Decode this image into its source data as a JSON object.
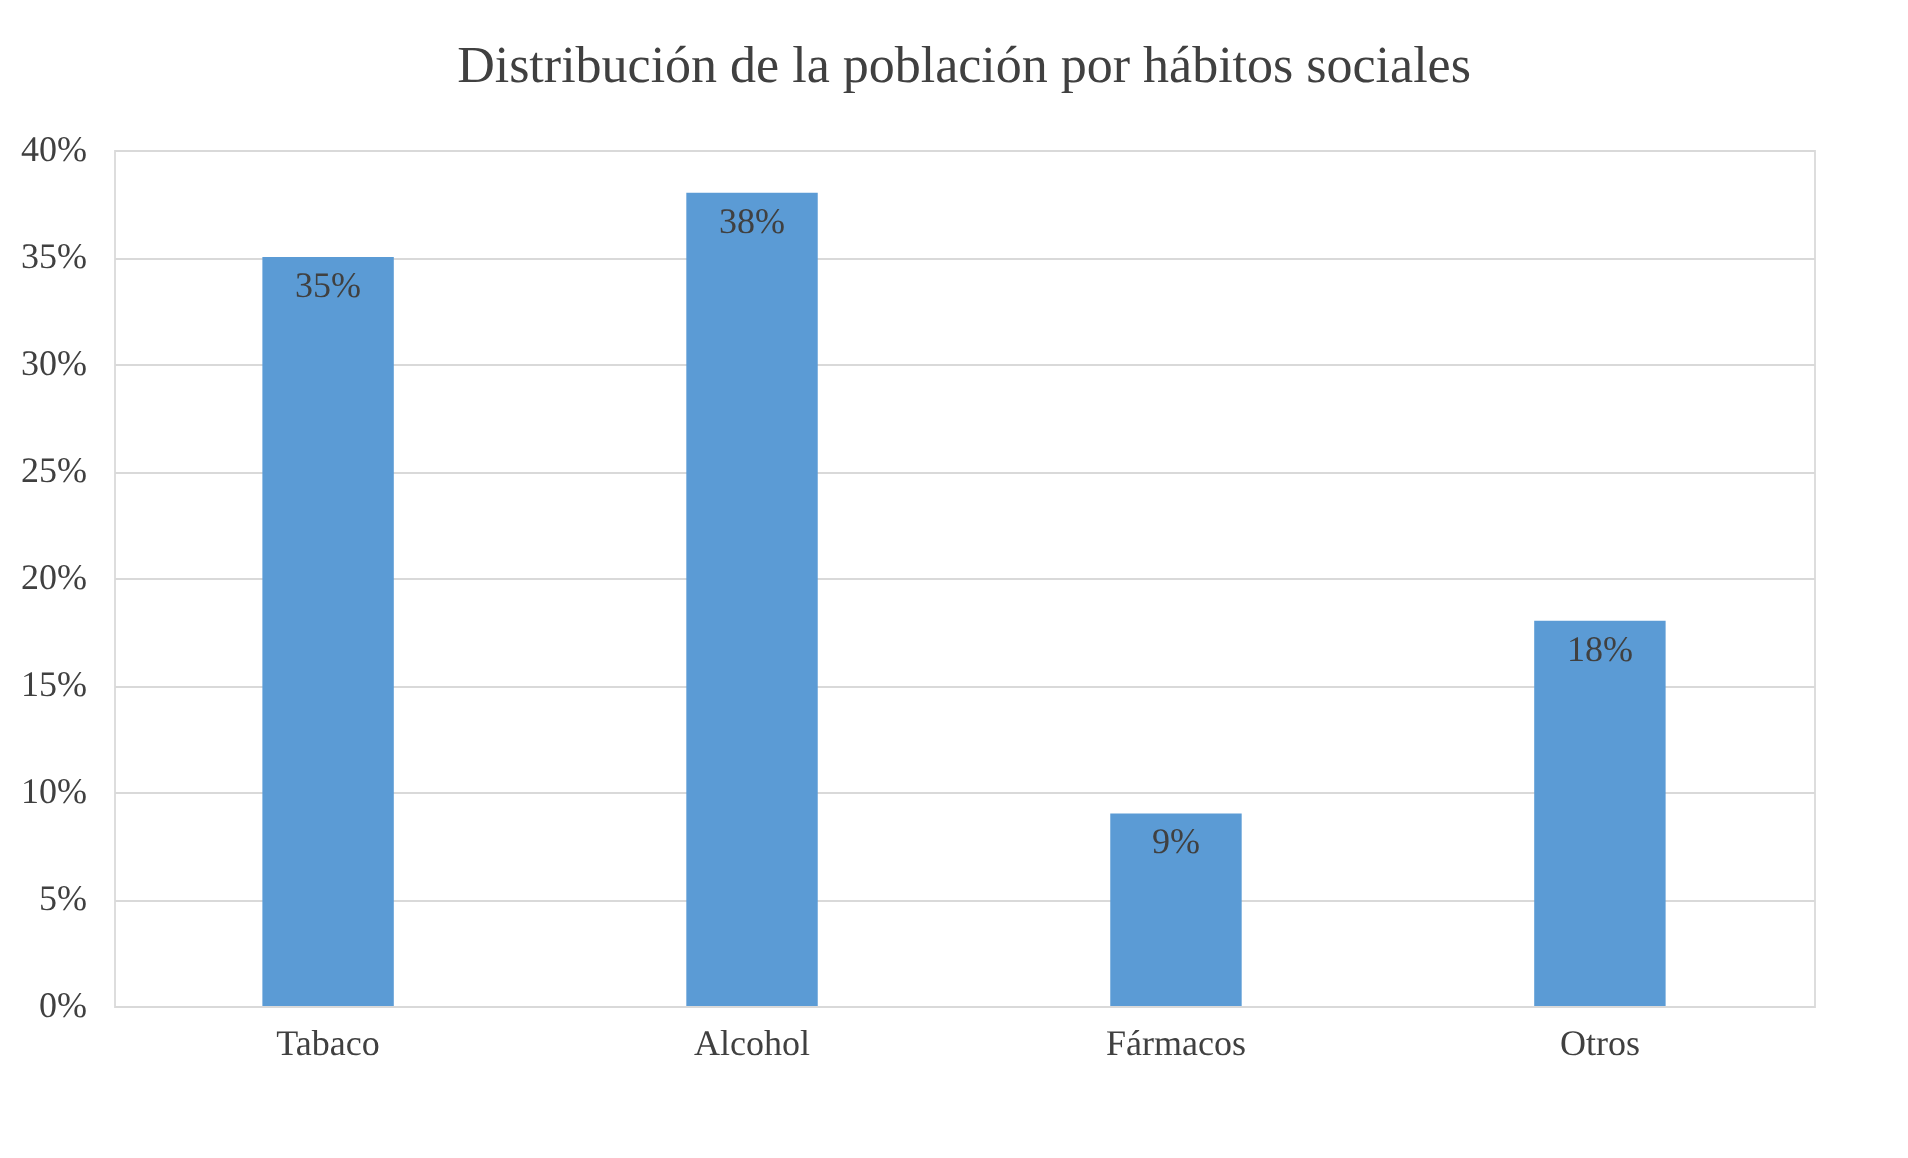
{
  "chart_data": {
    "type": "bar",
    "title": "Distribución de la población por hábitos sociales",
    "categories": [
      "Tabaco",
      "Alcohol",
      "Fármacos",
      "Otros"
    ],
    "values": [
      35,
      38,
      9,
      18
    ],
    "value_labels": [
      "35%",
      "38%",
      "9%",
      "18%"
    ],
    "color": "#5b9bd5",
    "ylim": [
      0,
      40
    ],
    "yticks": [
      {
        "value": 0,
        "label": "0%"
      },
      {
        "value": 5,
        "label": "5%"
      },
      {
        "value": 10,
        "label": "10%"
      },
      {
        "value": 15,
        "label": "15%"
      },
      {
        "value": 20,
        "label": "20%"
      },
      {
        "value": 25,
        "label": "25%"
      },
      {
        "value": 30,
        "label": "30%"
      },
      {
        "value": 35,
        "label": "35%"
      },
      {
        "value": 40,
        "label": "40%"
      }
    ],
    "grid": "y"
  }
}
